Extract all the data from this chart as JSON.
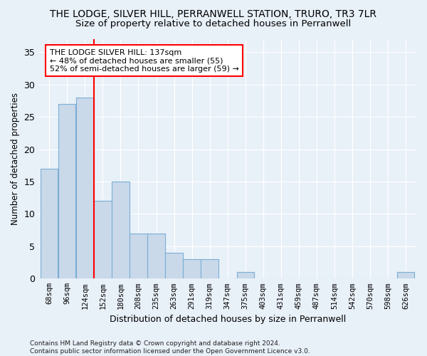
{
  "title": "THE LODGE, SILVER HILL, PERRANWELL STATION, TRURO, TR3 7LR",
  "subtitle": "Size of property relative to detached houses in Perranwell",
  "xlabel": "Distribution of detached houses by size in Perranwell",
  "ylabel": "Number of detached properties",
  "bar_labels": [
    "68sqm",
    "96sqm",
    "124sqm",
    "152sqm",
    "180sqm",
    "208sqm",
    "235sqm",
    "263sqm",
    "291sqm",
    "319sqm",
    "347sqm",
    "375sqm",
    "403sqm",
    "431sqm",
    "459sqm",
    "487sqm",
    "514sqm",
    "542sqm",
    "570sqm",
    "598sqm",
    "626sqm"
  ],
  "bar_values": [
    17,
    27,
    28,
    12,
    15,
    7,
    7,
    4,
    3,
    3,
    0,
    1,
    0,
    0,
    0,
    0,
    0,
    0,
    0,
    0,
    1
  ],
  "bar_color": "#c9d9ea",
  "bar_edge_color": "#7baed4",
  "red_line_index": 2.5,
  "annotation_text": "THE LODGE SILVER HILL: 137sqm\n← 48% of detached houses are smaller (55)\n52% of semi-detached houses are larger (59) →",
  "annotation_box_color": "white",
  "annotation_box_edge_color": "red",
  "red_line_color": "red",
  "ylim": [
    0,
    37
  ],
  "yticks": [
    0,
    5,
    10,
    15,
    20,
    25,
    30,
    35
  ],
  "footer_text": "Contains HM Land Registry data © Crown copyright and database right 2024.\nContains public sector information licensed under the Open Government Licence v3.0.",
  "background_color": "#e8f0f8",
  "grid_color": "#ffffff",
  "title_fontsize": 10,
  "subtitle_fontsize": 9.5,
  "annotation_fontsize": 8,
  "ylabel_fontsize": 8.5,
  "xlabel_fontsize": 9,
  "tick_fontsize": 7.5,
  "footer_fontsize": 6.5
}
